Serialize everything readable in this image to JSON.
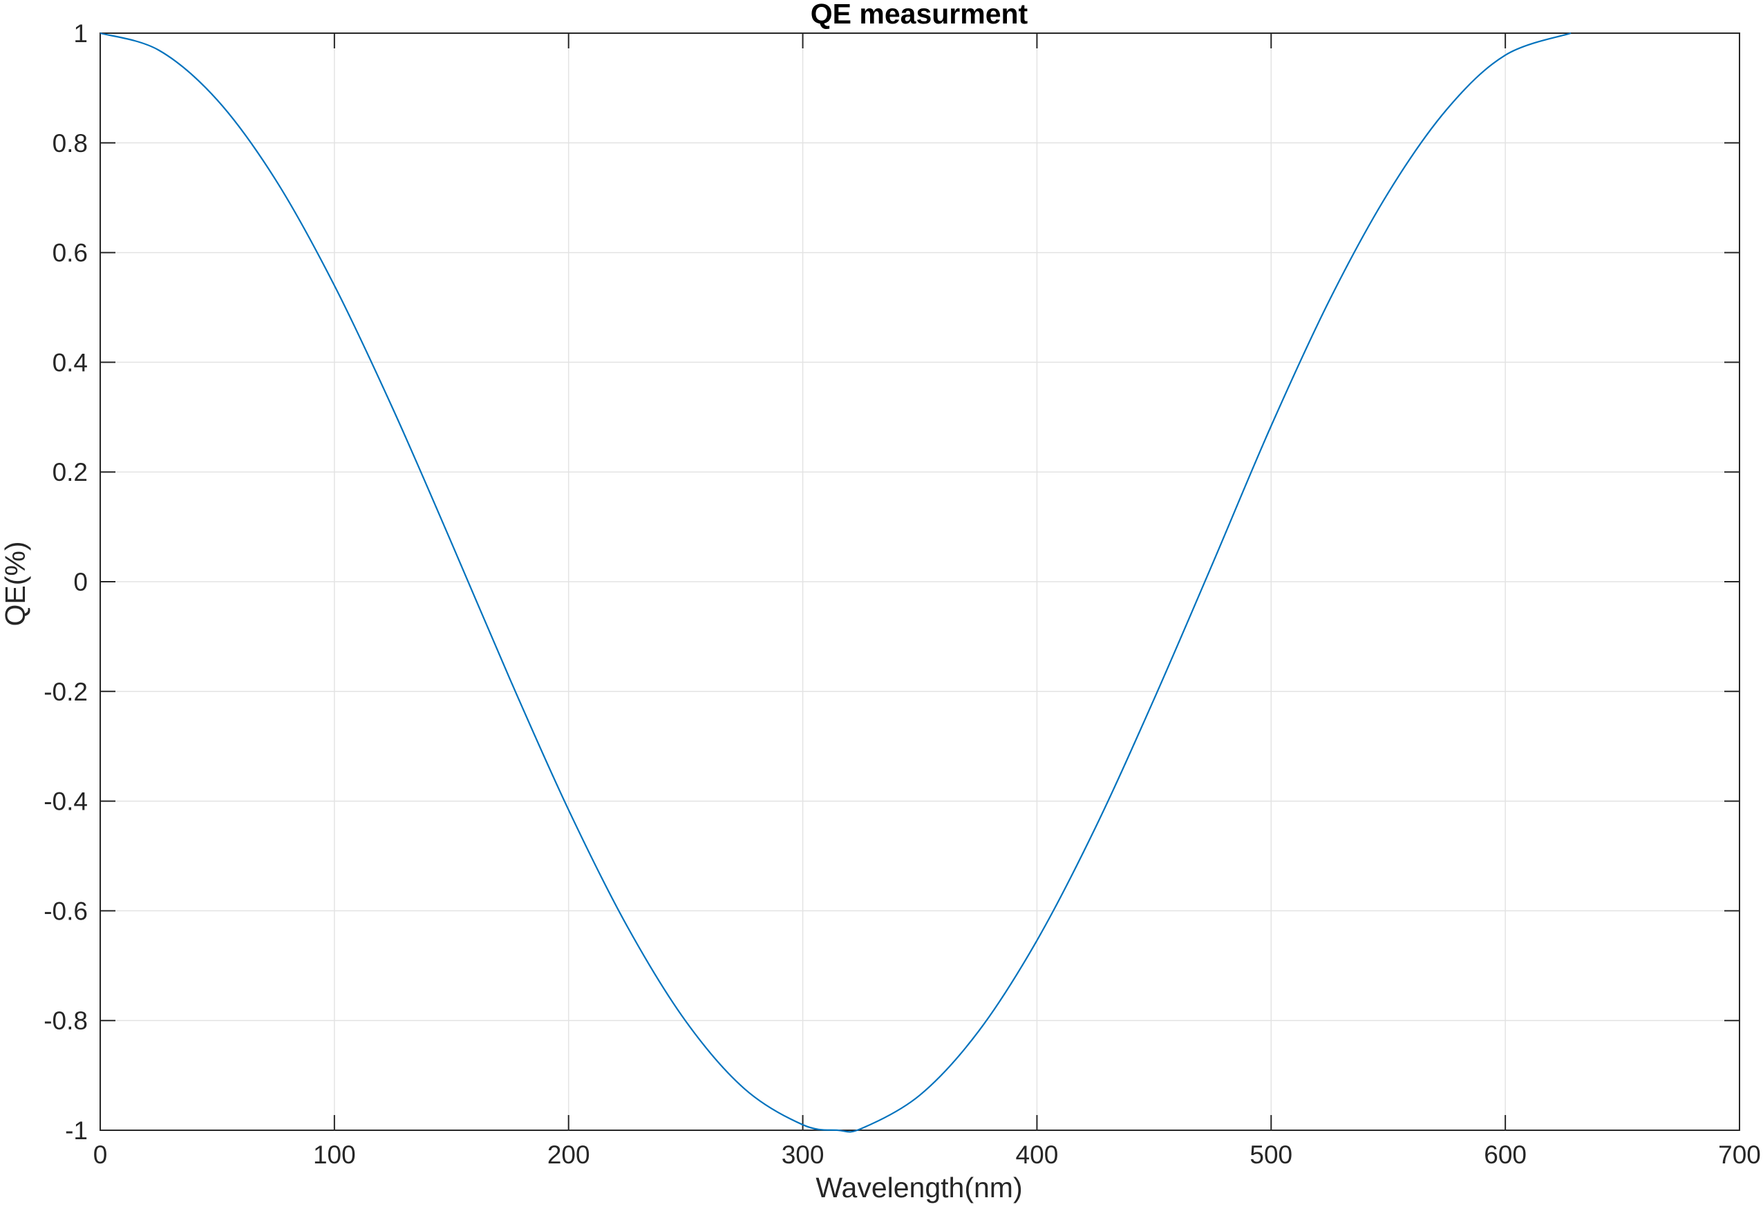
{
  "chart_data": {
    "type": "line",
    "title": "QE measurment",
    "xlabel": "Wavelength(nm)",
    "ylabel": "QE(%)",
    "xlim": [
      0,
      700
    ],
    "ylim": [
      -1,
      1
    ],
    "xticks": [
      0,
      100,
      200,
      300,
      400,
      500,
      600,
      700
    ],
    "xtick_labels": [
      "0",
      "100",
      "200",
      "300",
      "400",
      "500",
      "600",
      "700"
    ],
    "yticks": [
      1,
      0.8,
      0.6,
      0.4,
      0.2,
      0,
      -0.2,
      -0.4,
      -0.6,
      -0.8,
      -1
    ],
    "ytick_labels": [
      "1",
      "0.8",
      "0.6",
      "0.4",
      "0.2",
      "0",
      "-0.2",
      "-0.4",
      "-0.6",
      "-0.8",
      "-1"
    ],
    "grid": true,
    "series": [
      {
        "color": "#0072BD",
        "x": [
          0,
          25,
          50,
          75,
          100,
          125,
          150,
          175,
          200,
          225,
          250,
          275,
          300,
          315,
          325,
          350,
          375,
          400,
          425,
          450,
          475,
          500,
          525,
          550,
          575,
          600,
          628
        ],
        "y": [
          1.0,
          0.969,
          0.878,
          0.732,
          0.54,
          0.315,
          0.071,
          -0.178,
          -0.416,
          -0.628,
          -0.801,
          -0.924,
          -0.99,
          -1.0,
          -0.997,
          -0.936,
          -0.82,
          -0.654,
          -0.448,
          -0.214,
          0.033,
          0.284,
          0.514,
          0.709,
          0.861,
          0.96,
          1.0
        ]
      }
    ]
  }
}
